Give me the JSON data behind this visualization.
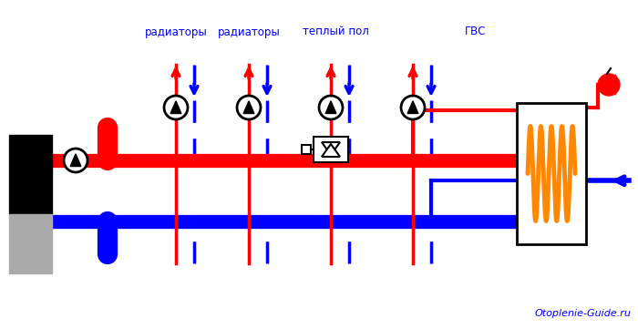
{
  "watermark": "Otoplenie-Guide.ru",
  "labels": [
    "радиаторы",
    "радиаторы",
    "теплый пол",
    "ГВС"
  ],
  "bg_color": "#ffffff",
  "red": "#ff0000",
  "blue": "#0000ff",
  "orange": "#ff8800",
  "gray": "#aaaaaa"
}
